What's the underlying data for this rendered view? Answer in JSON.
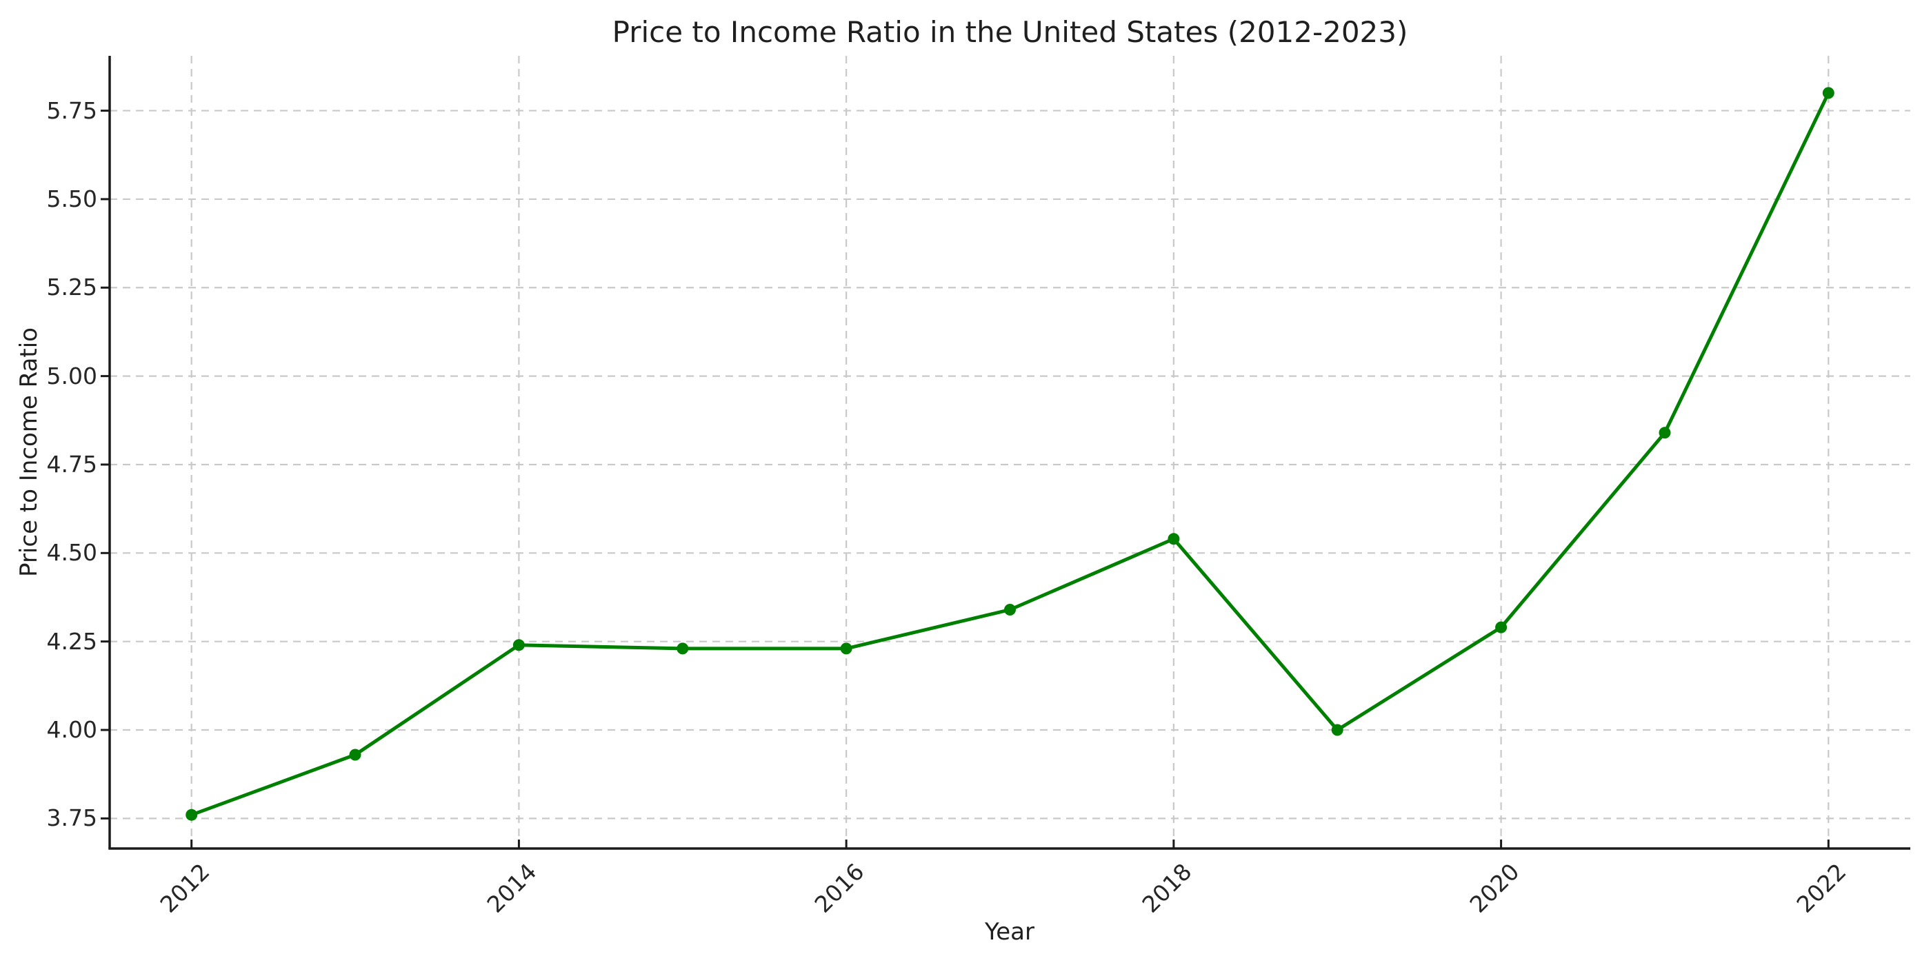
{
  "page": {
    "background": "#ffffff"
  },
  "chart_data": {
    "type": "line",
    "title": "Price to Income Ratio in the United States (2012-2023)",
    "xlabel": "Year",
    "ylabel": "Price to Income Ratio",
    "x": [
      2012,
      2013,
      2014,
      2015,
      2016,
      2017,
      2018,
      2019,
      2020,
      2021,
      2022
    ],
    "series": [
      {
        "name": "Price to Income Ratio",
        "color": "#008000",
        "values": [
          3.76,
          3.93,
          4.24,
          4.23,
          4.23,
          4.34,
          4.54,
          4.0,
          4.29,
          4.84,
          5.8
        ]
      }
    ],
    "xlim": [
      2011.5,
      2022.5
    ],
    "ylim": [
      3.665,
      5.905
    ],
    "xticks": {
      "values": [
        2012,
        2014,
        2016,
        2018,
        2020,
        2022
      ],
      "labels": [
        "2012",
        "2014",
        "2016",
        "2018",
        "2020",
        "2022"
      ],
      "rotation_deg": 45
    },
    "yticks": {
      "values": [
        3.75,
        4.0,
        4.25,
        4.5,
        4.75,
        5.0,
        5.25,
        5.5,
        5.75
      ],
      "labels": [
        "3.75",
        "4.00",
        "4.25",
        "4.50",
        "4.75",
        "5.00",
        "5.25",
        "5.50",
        "5.75"
      ]
    },
    "grid": {
      "show": true,
      "style": "dashed",
      "color": "#c9c9c9",
      "line_width": 2.2,
      "dash": "11 8"
    },
    "spines": {
      "left": true,
      "bottom": true,
      "top": false,
      "right": false,
      "color": "#1a1a1a",
      "width": 3.5
    },
    "marker": "circle",
    "marker_radius": 8.5,
    "line_width": 5,
    "legend": "none",
    "tick_color": "#1a1a1a",
    "x_tick_direction": "in",
    "y_tick_direction": "out"
  }
}
